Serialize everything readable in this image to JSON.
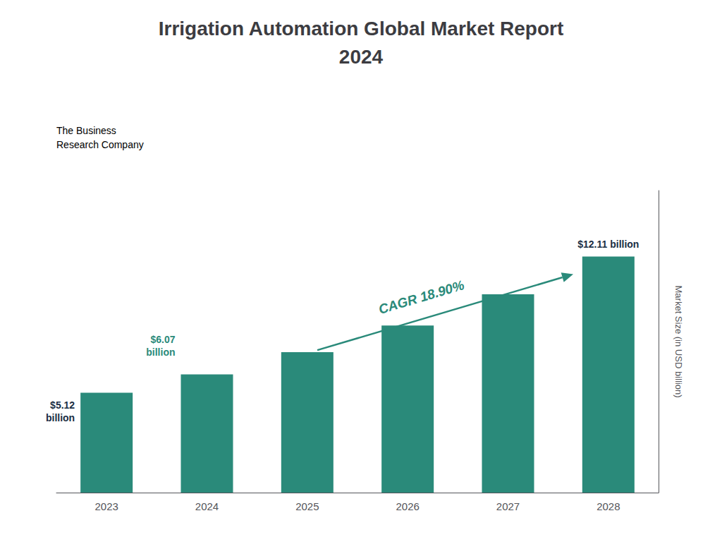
{
  "chart_data": {
    "type": "bar",
    "title": "Irrigation Automation Global Market Report\n2024",
    "categories": [
      "2023",
      "2024",
      "2025",
      "2026",
      "2027",
      "2028"
    ],
    "values": [
      5.12,
      6.07,
      7.21,
      8.57,
      10.18,
      12.11
    ],
    "color": "#2a8a7a",
    "ylabel": "Market Size (in USD billion)",
    "ylim": [
      0,
      15.5
    ],
    "yticks": [],
    "tick_labels": "x",
    "grid": false,
    "annotations": [
      {
        "text": "$5.12\nbillion",
        "category": "2023",
        "color": "#1a2e44"
      },
      {
        "text": "$6.07\nbillion",
        "category": "2024",
        "color": "#2a8a7a"
      },
      {
        "text": "$12.11 billion",
        "category": "2028",
        "color": "#1a2e44"
      },
      {
        "text": "CAGR 18.90%",
        "arrow": [
          "2025",
          "2028"
        ],
        "color": "#2a8a7a"
      },
      {
        "text": "The Business\nResearch Company"
      }
    ]
  }
}
